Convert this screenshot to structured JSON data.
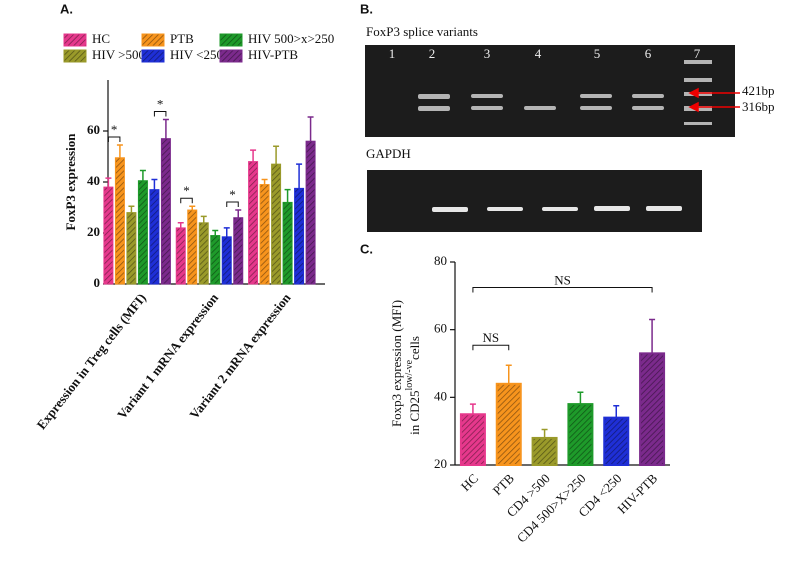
{
  "chart_data": [
    {
      "type": "bar",
      "panel": "A.",
      "ylabel": "FoxP3 expression",
      "categories": [
        "Expression in Treg cells (MFI)",
        "Variant 1 mRNA expression",
        "Variant 2 mRNA expression"
      ],
      "series": [
        {
          "name": "HC",
          "color": "#e6388c",
          "values": [
            38,
            22,
            48
          ],
          "errors": [
            3.5,
            2,
            4.5
          ]
        },
        {
          "name": "PTB",
          "color": "#f7941d",
          "values": [
            49.5,
            29,
            39
          ],
          "errors": [
            5,
            1.5,
            2
          ]
        },
        {
          "name": "HIV >500",
          "color": "#9a9a2a",
          "values": [
            28,
            24,
            47
          ],
          "errors": [
            2.5,
            2.5,
            7
          ]
        },
        {
          "name": "HIV 500>x>250",
          "color": "#1e9a2a",
          "values": [
            40.5,
            19,
            32
          ],
          "errors": [
            4,
            2,
            5
          ]
        },
        {
          "name": "HIV <250",
          "color": "#1f2fd6",
          "values": [
            37,
            18.5,
            37.5
          ],
          "errors": [
            4,
            3.5,
            9.5
          ]
        },
        {
          "name": "HIV-PTB",
          "color": "#7b2a8c",
          "values": [
            57,
            26,
            56
          ],
          "errors": [
            7.5,
            3,
            9.5
          ]
        }
      ],
      "significance": [
        {
          "category": 0,
          "series": [
            0,
            1
          ],
          "label": "*"
        },
        {
          "category": 0,
          "series": [
            4,
            5
          ],
          "label": "*"
        },
        {
          "category": 1,
          "series": [
            0,
            1
          ],
          "label": "*"
        },
        {
          "category": 1,
          "series": [
            4,
            5
          ],
          "label": "*"
        }
      ],
      "ylim": [
        0,
        80
      ],
      "yticks": [
        0,
        20,
        40,
        60
      ]
    },
    {
      "type": "bar",
      "panel": "C.",
      "ylabel": [
        "Foxp3 expression (MFI)",
        "in CD25",
        "low/-ve",
        "cells"
      ],
      "categories": [
        "HC",
        "PTB",
        "CD4 >500",
        "CD4 500>X>250",
        "CD4 <250",
        "HIV-PTB"
      ],
      "colors": [
        "#e6388c",
        "#f7941d",
        "#9a9a2a",
        "#1e9a2a",
        "#1f2fd6",
        "#7b2a8c"
      ],
      "values": [
        35,
        44,
        28,
        38,
        34,
        53
      ],
      "errors": [
        3,
        5.5,
        2.5,
        3.5,
        3.5,
        10
      ],
      "significance": [
        {
          "from": 0,
          "to": 1,
          "label": "NS"
        },
        {
          "from": 0,
          "to": 5,
          "label": "NS"
        }
      ],
      "ylim": [
        20,
        80
      ],
      "yticks": [
        20,
        40,
        60,
        80
      ]
    }
  ],
  "gel": {
    "panel": "B.",
    "title": "FoxP3 splice variants",
    "lanes": [
      "1",
      "2",
      "3",
      "4",
      "5",
      "6",
      "7"
    ],
    "markers": [
      "421bp",
      "316bp"
    ],
    "control": "GAPDH"
  }
}
